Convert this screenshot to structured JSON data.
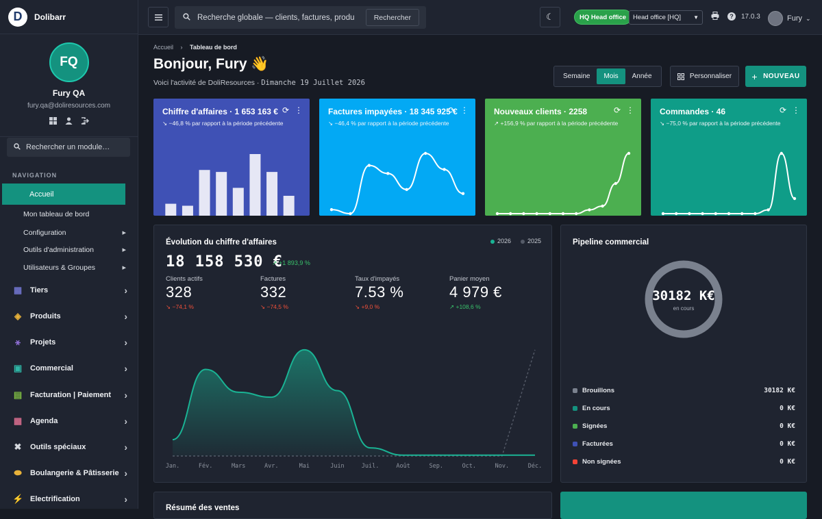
{
  "brand": {
    "logo_letter": "D",
    "name": "Dolibarr"
  },
  "profile": {
    "initials": "FQ",
    "name": "Fury QA",
    "email": "fury.qa@doliresources.com"
  },
  "sidebar": {
    "search_placeholder": "Rechercher un module…",
    "nav_heading": "NAVIGATION",
    "active_item": "Accueil",
    "sub_items": [
      {
        "label": "Mon tableau de bord",
        "chevron": false
      },
      {
        "label": "Configuration",
        "chevron": true
      },
      {
        "label": "Outils d'administration",
        "chevron": true
      },
      {
        "label": "Utilisateurs & Groupes",
        "chevron": true
      }
    ],
    "main_items": [
      {
        "label": "Tiers",
        "icon": "building-icon",
        "glyph": "▦",
        "color": "#6e72c9"
      },
      {
        "label": "Produits",
        "icon": "box-icon",
        "glyph": "◈",
        "color": "#e8b23a"
      },
      {
        "label": "Projets",
        "icon": "sitemap-icon",
        "glyph": "⚹",
        "color": "#8f6fd6"
      },
      {
        "label": "Commercial",
        "icon": "briefcase-icon",
        "glyph": "▣",
        "color": "#2fb5a5"
      },
      {
        "label": "Facturation | Paiement",
        "icon": "invoice-icon",
        "glyph": "▤",
        "color": "#7dbb42"
      },
      {
        "label": "Agenda",
        "icon": "calendar-icon",
        "glyph": "▦",
        "color": "#d06a8a"
      },
      {
        "label": "Outils spéciaux",
        "icon": "tools-icon",
        "glyph": "✖",
        "color": "#d6d9df"
      },
      {
        "label": "Boulangerie & Pâtisserie",
        "icon": "bread-icon",
        "glyph": "⬬",
        "color": "#e8b23a"
      },
      {
        "label": "Electrification",
        "icon": "bolt-icon",
        "glyph": "⚡",
        "color": "#f5c518"
      }
    ]
  },
  "topbar": {
    "search_placeholder": "Recherche globale — clients, factures, produits…",
    "search_button": "Rechercher",
    "entity_badge": "HQ Head office",
    "entity_select": "Head office [HQ]",
    "version": "17.0.3",
    "user": "Fury"
  },
  "page": {
    "breadcrumb_home": "Accueil",
    "breadcrumb_current": "Tableau de bord",
    "greeting": "Bonjour, Fury 👋",
    "subtitle_prefix": "Voici l'activité de DoliResources · ",
    "subtitle_date": "Dimanche 19 Juillet 2026",
    "periods": [
      "Semaine",
      "Mois",
      "Année"
    ],
    "active_period": "Mois",
    "customize_button": "Personnaliser",
    "new_button": "NOUVEAU"
  },
  "kpi_cards": [
    {
      "title": "Chiffre d'affaires · 1 653 163 €",
      "delta": "↘ −46,8 % par rapport à la période précédente",
      "color": "#3f51b5",
      "type": "bar",
      "values": [
        3,
        2.5,
        11.5,
        11,
        7,
        15.5,
        11,
        5
      ]
    },
    {
      "title": "Factures impayées · 18 345 925 €",
      "delta": "↘ −46,4 % par rapport à la période précédente",
      "color": "#03a9f4",
      "type": "line",
      "values": [
        1,
        0,
        12,
        10,
        6,
        15,
        11,
        5
      ]
    },
    {
      "title": "Nouveaux clients · 2258",
      "delta": "↗ +156,9 % par rapport à la période précédente",
      "color": "#4caf50",
      "type": "line",
      "values": [
        0,
        0,
        0,
        0,
        0,
        0,
        0,
        1,
        2,
        8,
        16
      ]
    },
    {
      "title": "Commandes · 46",
      "delta": "↘ −75,0 % par rapport à la période précédente",
      "color": "#0f9d88",
      "type": "line",
      "values": [
        0,
        0,
        0,
        0,
        0,
        0,
        0,
        0,
        1,
        16,
        4
      ]
    }
  ],
  "revenue_panel": {
    "title": "Évolution du chiffre d'affaires",
    "legend": [
      {
        "label": "2026",
        "color": "#1ab394"
      },
      {
        "label": "2025",
        "color": "#555b68"
      }
    ],
    "total": "18 158 530 €",
    "total_delta": "↗ +1 893,9 %",
    "stats": [
      {
        "label": "Clients actifs",
        "value": "328",
        "delta": "↘ −74,1 %",
        "positive": false
      },
      {
        "label": "Factures",
        "value": "332",
        "delta": "↘ −74,5 %",
        "positive": false
      },
      {
        "label": "Taux d'impayés",
        "value": "7.53 %",
        "delta": "↘ +9,0 %",
        "positive": false
      },
      {
        "label": "Panier moyen",
        "value": "4 979 €",
        "delta": "↗ +108,6 %",
        "positive": true
      }
    ]
  },
  "chart_data": {
    "type": "area",
    "categories": [
      "Jan.",
      "Fév.",
      "Mars",
      "Avr.",
      "Mai",
      "Juin",
      "Juil.",
      "Août",
      "Sep.",
      "Oct.",
      "Nov.",
      "Déc."
    ],
    "series": [
      {
        "name": "2026",
        "values": [
          1.0,
          5.3,
          3.9,
          3.6,
          6.5,
          4.0,
          0.5,
          0.05,
          0.05,
          0.05,
          0.05,
          0.05
        ]
      },
      {
        "name": "2025",
        "values": [
          0,
          0,
          0,
          0,
          0,
          0,
          0,
          0,
          0,
          0,
          0,
          6.5
        ]
      }
    ],
    "ylim": [
      0,
      7.5
    ],
    "grid": false
  },
  "pipeline": {
    "title": "Pipeline commercial",
    "total": "30182 K€",
    "total_label": "en cours",
    "rows": [
      {
        "label": "Brouillons",
        "value": "30182 K€",
        "color": "#7a818e"
      },
      {
        "label": "En cours",
        "value": "0 K€",
        "color": "#14927f"
      },
      {
        "label": "Signées",
        "value": "0 K€",
        "color": "#4caf50"
      },
      {
        "label": "Facturées",
        "value": "0 K€",
        "color": "#3f51b5"
      },
      {
        "label": "Non signées",
        "value": "0 K€",
        "color": "#f44336"
      }
    ]
  },
  "summary": {
    "title": "Résumé des ventes"
  }
}
